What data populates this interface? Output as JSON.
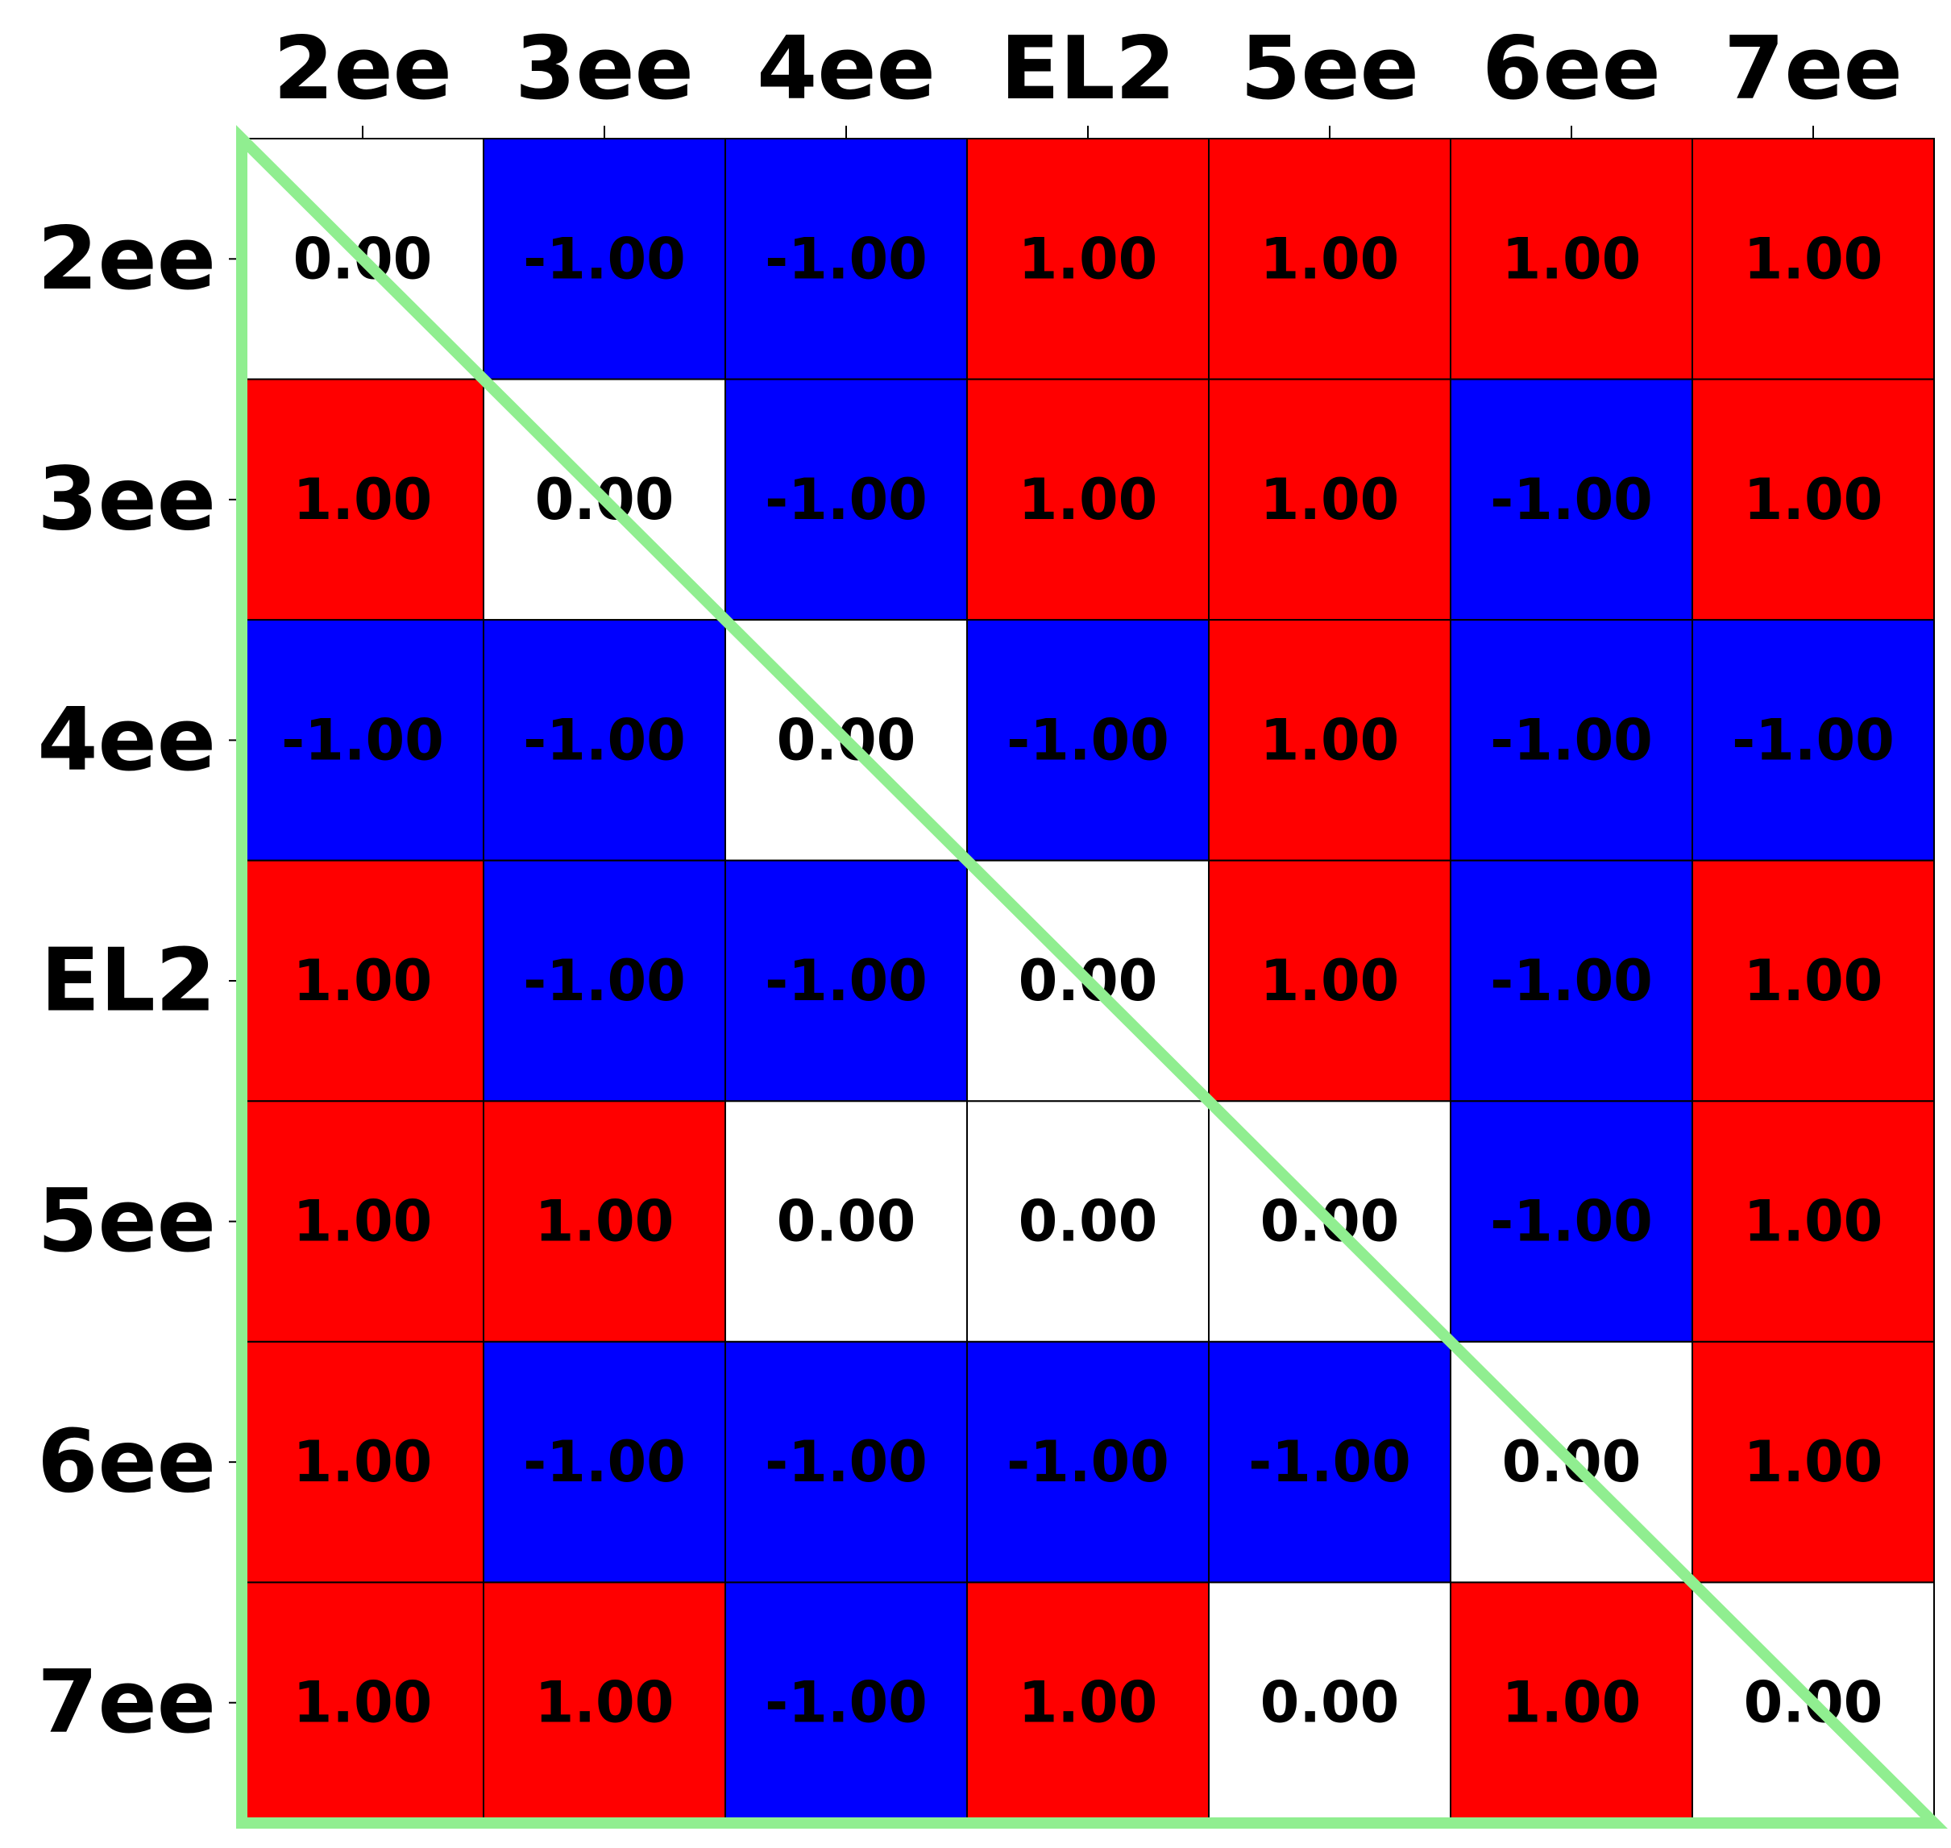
{
  "chart_data": {
    "type": "heatmap",
    "title": "",
    "xlabel": "",
    "ylabel": "",
    "x_categories": [
      "2ee",
      "3ee",
      "4ee",
      "EL2",
      "5ee",
      "6ee",
      "7ee"
    ],
    "y_categories": [
      "2ee",
      "3ee",
      "4ee",
      "EL2",
      "5ee",
      "6ee",
      "7ee"
    ],
    "values": [
      [
        0,
        -1,
        -1,
        1,
        1,
        1,
        1
      ],
      [
        1,
        0,
        -1,
        1,
        1,
        -1,
        1
      ],
      [
        -1,
        -1,
        0,
        -1,
        1,
        -1,
        -1
      ],
      [
        1,
        -1,
        -1,
        0,
        1,
        -1,
        1
      ],
      [
        1,
        1,
        0,
        0,
        0,
        -1,
        1
      ],
      [
        1,
        -1,
        -1,
        -1,
        -1,
        0,
        1
      ],
      [
        1,
        1,
        -1,
        1,
        0,
        1,
        0
      ]
    ],
    "value_labels": [
      [
        "0.00",
        "-1.00",
        "-1.00",
        "1.00",
        "1.00",
        "1.00",
        "1.00"
      ],
      [
        "1.00",
        "0.00",
        "-1.00",
        "1.00",
        "1.00",
        "-1.00",
        "1.00"
      ],
      [
        "-1.00",
        "-1.00",
        "0.00",
        "-1.00",
        "1.00",
        "-1.00",
        "-1.00"
      ],
      [
        "1.00",
        "-1.00",
        "-1.00",
        "0.00",
        "1.00",
        "-1.00",
        "1.00"
      ],
      [
        "1.00",
        "1.00",
        "0.00",
        "0.00",
        "0.00",
        "-1.00",
        "1.00"
      ],
      [
        "1.00",
        "-1.00",
        "-1.00",
        "-1.00",
        "-1.00",
        "0.00",
        "1.00"
      ],
      [
        "1.00",
        "1.00",
        "-1.00",
        "1.00",
        "0.00",
        "1.00",
        "0.00"
      ]
    ],
    "value_range": [
      -1,
      1
    ],
    "x_axis_position": "top",
    "grid": false,
    "legend": "none"
  },
  "colors": {
    "positive": "#ff0000",
    "negative": "#0000ff",
    "zero": "#ffffff",
    "cell_border": "#000000",
    "triangle_outline": "#90ee90",
    "text": "#000000"
  }
}
